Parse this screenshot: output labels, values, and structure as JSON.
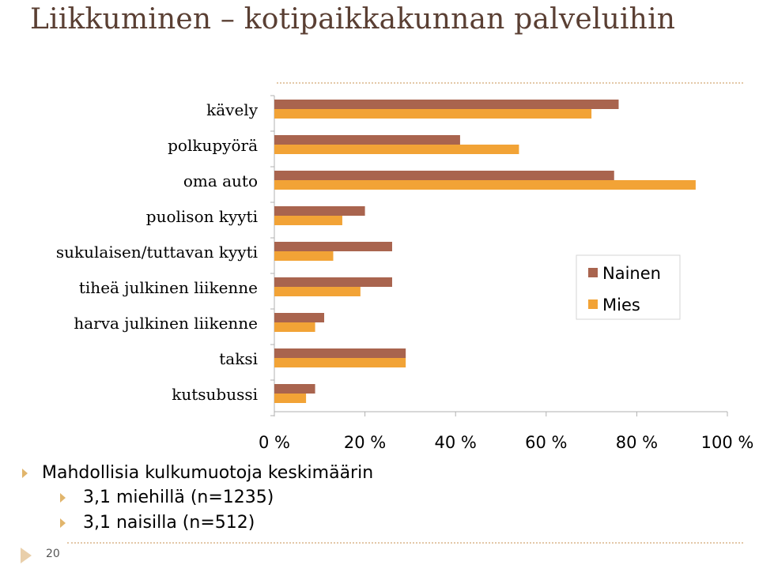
{
  "slide": {
    "title": "Liikkuminen – kotipaikkakunnan palveluihin",
    "page_number": "20",
    "bullets": [
      {
        "text": "Mahdollisia kulkumuotoja keskimäärin",
        "sub": [
          "3,1 miehillä (n=1235)",
          "3,1 naisilla (n=512)"
        ]
      }
    ]
  },
  "colors": {
    "nainen": "#a9644e",
    "mies": "#f2a336",
    "title": "#5a3f33",
    "bullet_marker": "#e1b56c"
  },
  "chart_data": {
    "type": "bar",
    "orientation": "horizontal",
    "categories": [
      "kävely",
      "polkupyörä",
      "oma auto",
      "puolison kyyti",
      "sukulaisen/tuttavan kyyti",
      "tiheä julkinen liikenne",
      "harva julkinen liikenne",
      "taksi",
      "kutsubussi"
    ],
    "series": [
      {
        "name": "Nainen",
        "values": [
          76,
          41,
          75,
          20,
          26,
          26,
          11,
          29,
          9
        ]
      },
      {
        "name": "Mies",
        "values": [
          70,
          54,
          93,
          15,
          13,
          19,
          9,
          29,
          7
        ]
      }
    ],
    "xlim": [
      0,
      100
    ],
    "xticks": [
      "0 %",
      "20 %",
      "40 %",
      "60 %",
      "80 %",
      "100 %"
    ],
    "xlabel": "",
    "ylabel": "",
    "grid": false,
    "legend": "right"
  }
}
